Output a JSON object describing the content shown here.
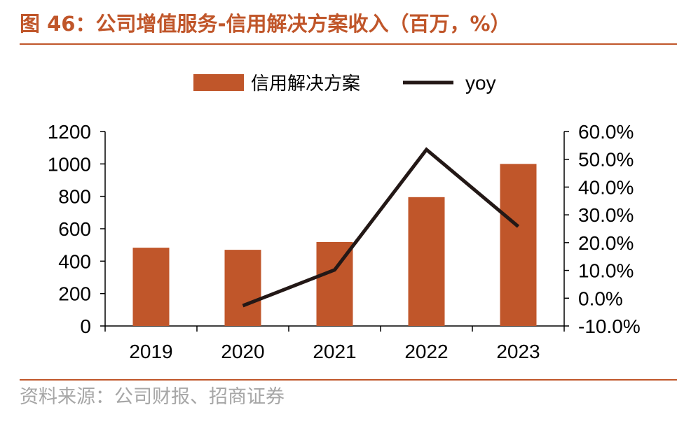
{
  "header": {
    "title": "图 46：公司增值服务-信用解决方案收入（百万，%）"
  },
  "footer": {
    "source": "资料来源：公司财报、招商证券"
  },
  "colors": {
    "accent": "#c0562a",
    "bar": "#c0562a",
    "line": "#231816",
    "axis": "#000000",
    "source_text": "#a6a6a6"
  },
  "chart_data": {
    "type": "bar",
    "categories": [
      "2019",
      "2020",
      "2021",
      "2022",
      "2023"
    ],
    "series": [
      {
        "name": "信用解决方案",
        "type": "bar",
        "axis": "left",
        "values": [
          483,
          470,
          518,
          795,
          1000
        ]
      },
      {
        "name": "yoy",
        "type": "line",
        "axis": "right",
        "values": [
          null,
          -2.7,
          10.2,
          53.5,
          25.8
        ]
      }
    ],
    "left_axis": {
      "min": 0,
      "max": 1200,
      "ticks": [
        "0",
        "200",
        "400",
        "600",
        "800",
        "1000",
        "1200"
      ]
    },
    "right_axis": {
      "min": -10,
      "max": 60,
      "ticks": [
        "-10.0%",
        "0.0%",
        "10.0%",
        "20.0%",
        "30.0%",
        "40.0%",
        "50.0%",
        "60.0%"
      ]
    },
    "legend": {
      "position": "top-center",
      "items": [
        "信用解决方案",
        "yoy"
      ]
    },
    "grid": false
  }
}
